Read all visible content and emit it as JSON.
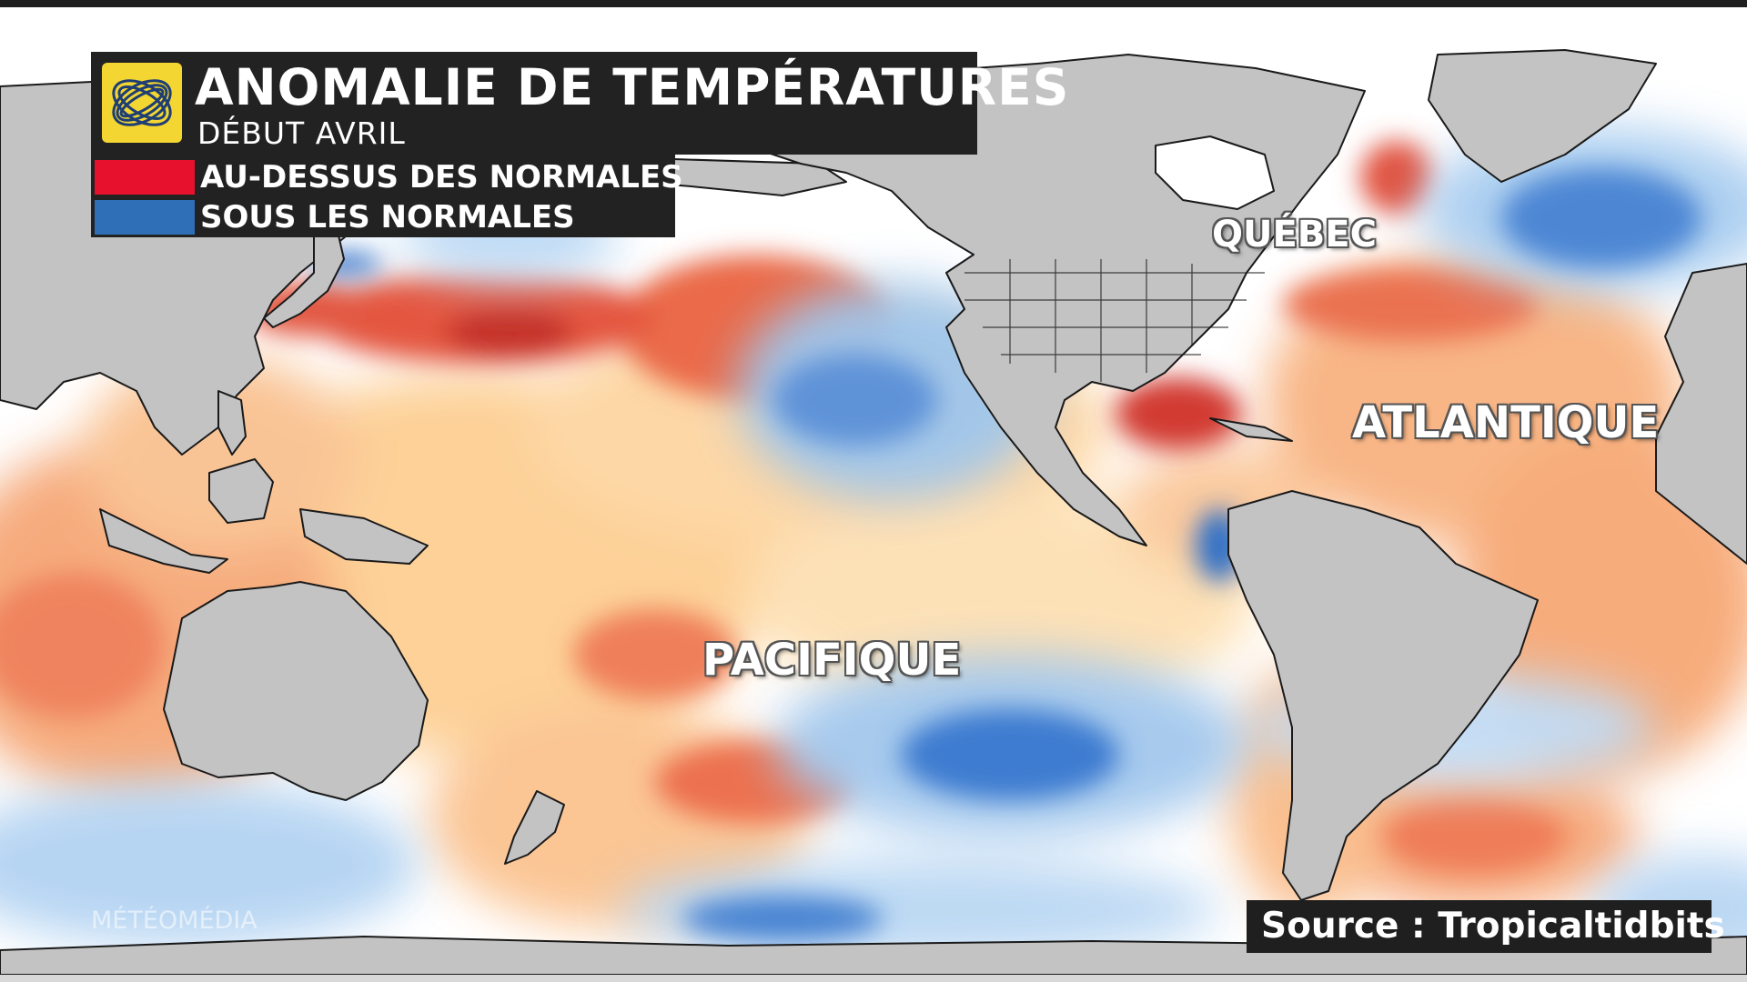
{
  "header": {
    "title": "ANOMALIE DE TEMPÉRATURES",
    "subtitle": "DÉBUT AVRIL"
  },
  "legend": {
    "items": [
      {
        "label": "AU-DESSUS DES NORMALES",
        "color": "#e8112d"
      },
      {
        "label": "SOUS LES NORMALES",
        "color": "#2f6fb8"
      }
    ]
  },
  "map": {
    "labels": {
      "quebec": "QUÉBEC",
      "atlantic": "ATLANTIQUE",
      "pacific": "PACIFIQUE"
    },
    "colors": {
      "ocean_neutral": "#ffffff",
      "warm_light": "#fdd9a0",
      "warm_mid": "#f5a06a",
      "warm_strong": "#e0503a",
      "cool_light": "#c9e4f8",
      "cool_mid": "#7ab2e6",
      "cool_strong": "#2d6cc4",
      "land": "#c3c3c3",
      "border": "#1a1a1a"
    }
  },
  "footer": {
    "watermark": "MÉTÉOMÉDIA",
    "source": "Source : Tropicaltidbits"
  }
}
